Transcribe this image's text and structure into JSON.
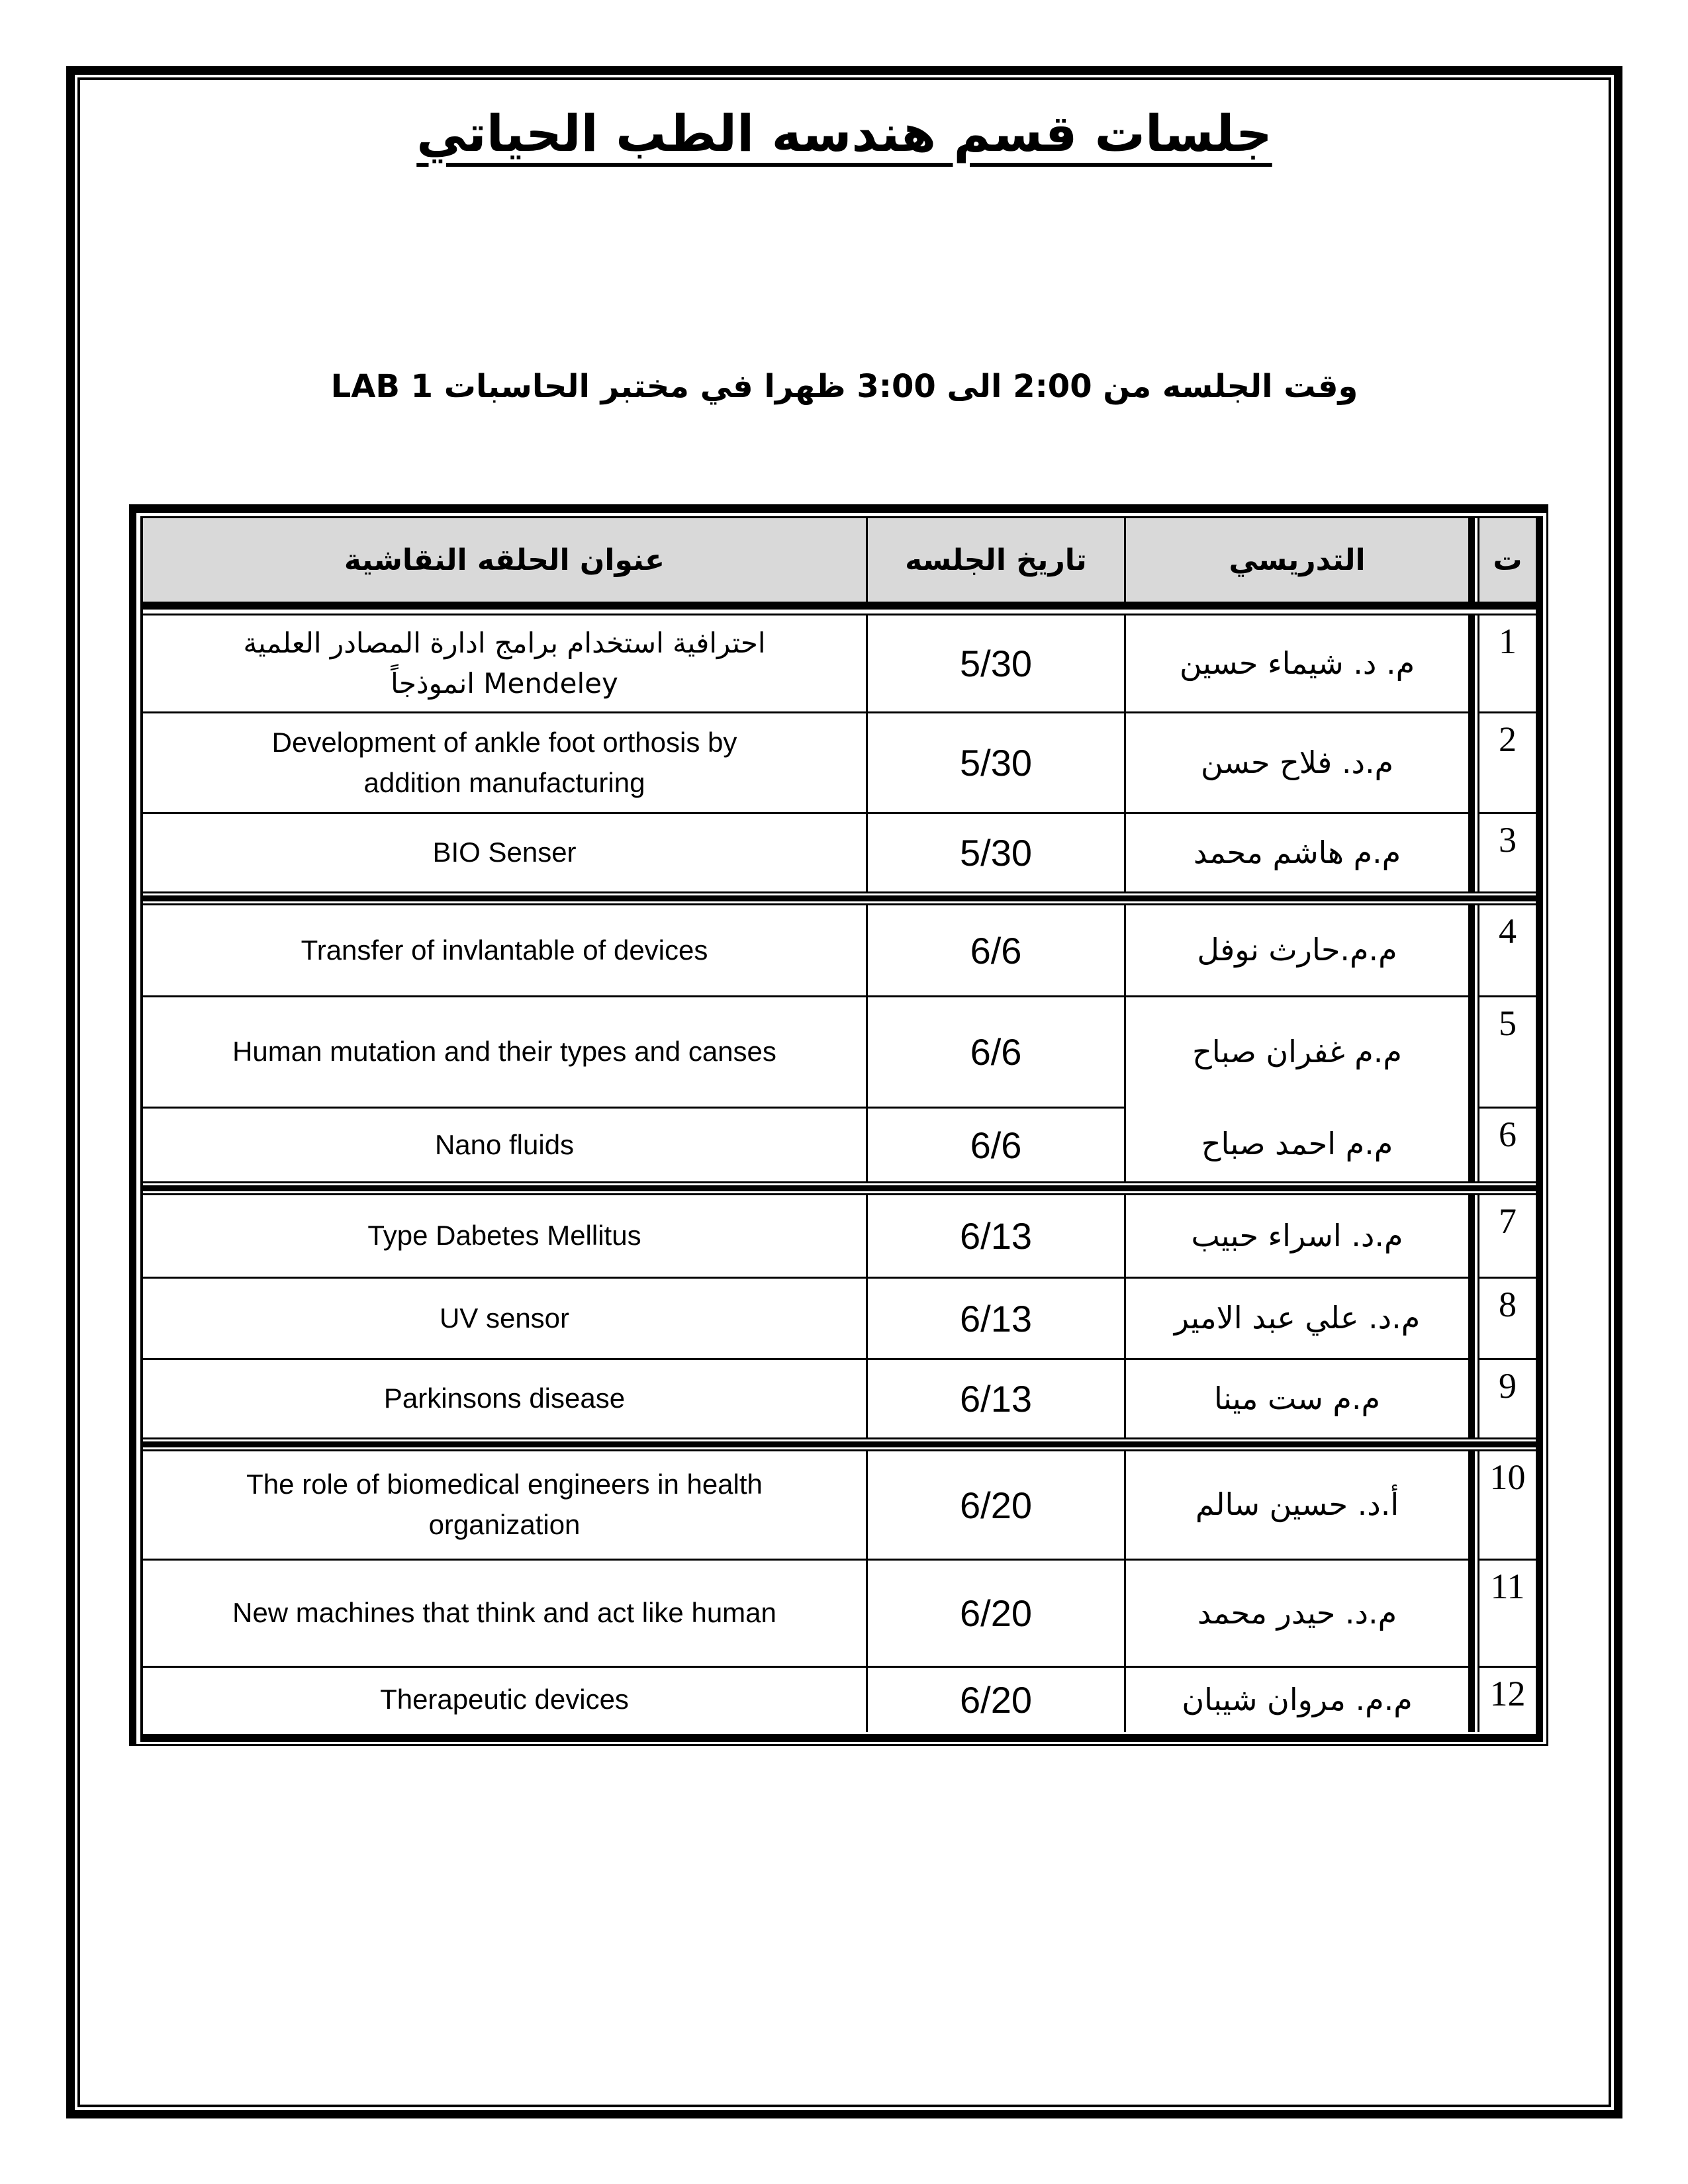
{
  "page": {
    "title": "جلسات قسم هندسه الطب الحياتي",
    "subtitle": "وقت الجلسه من 2:00 الى 3:00 ظهرا في مختبر الحاسبات LAB 1"
  },
  "table": {
    "columns": {
      "no": "ت",
      "instructor": "التدريسي",
      "date": "تاريخ الجلسه",
      "title": "عنوان الحلقه النقاشية"
    },
    "rows": [
      {
        "no": "1",
        "instructor": "م. د. شيماء حسين",
        "date": "5/30",
        "title": "احترافية استخدام برامج ادارة المصادر العلمية Mendeley انموذجاً"
      },
      {
        "no": "2",
        "instructor": "م.د. فلاح حسن",
        "date": "5/30",
        "title": "Development of ankle foot orthosis by addition manufacturing"
      },
      {
        "no": "3",
        "instructor": "م.م هاشم محمد",
        "date": "5/30",
        "title": "BIO Senser"
      },
      {
        "no": "4",
        "instructor": "م.م.حارث نوفل",
        "date": "6/6",
        "title": "Transfer of invlantable of devices"
      },
      {
        "no": "5",
        "instructor": "م.م غفران صباح",
        "date": "6/6",
        "title": "Human mutation and their types and canses"
      },
      {
        "no": "6",
        "instructor": "م.م احمد صباح",
        "date": "6/6",
        "title": "Nano fluids"
      },
      {
        "no": "7",
        "instructor": "م.د. اسراء حبيب",
        "date": "6/13",
        "title": "Type Dabetes Mellitus"
      },
      {
        "no": "8",
        "instructor": "م.د. علي عبد الامير",
        "date": "6/13",
        "title": "UV sensor"
      },
      {
        "no": "9",
        "instructor": "م.م ست مينا",
        "date": "6/13",
        "title": "Parkinsons disease"
      },
      {
        "no": "10",
        "instructor": "أ.د. حسين سالم",
        "date": "6/20",
        "title": "The role of biomedical engineers in health organization"
      },
      {
        "no": "11",
        "instructor": "م.د. حيدر محمد",
        "date": "6/20",
        "title": "New machines that think and act like human"
      },
      {
        "no": "12",
        "instructor": "م.م. مروان شيبان",
        "date": "6/20",
        "title": "Therapeutic devices"
      }
    ],
    "colors": {
      "header_bg": "#D9D9D9",
      "border": "#000000",
      "text": "#000000"
    }
  }
}
